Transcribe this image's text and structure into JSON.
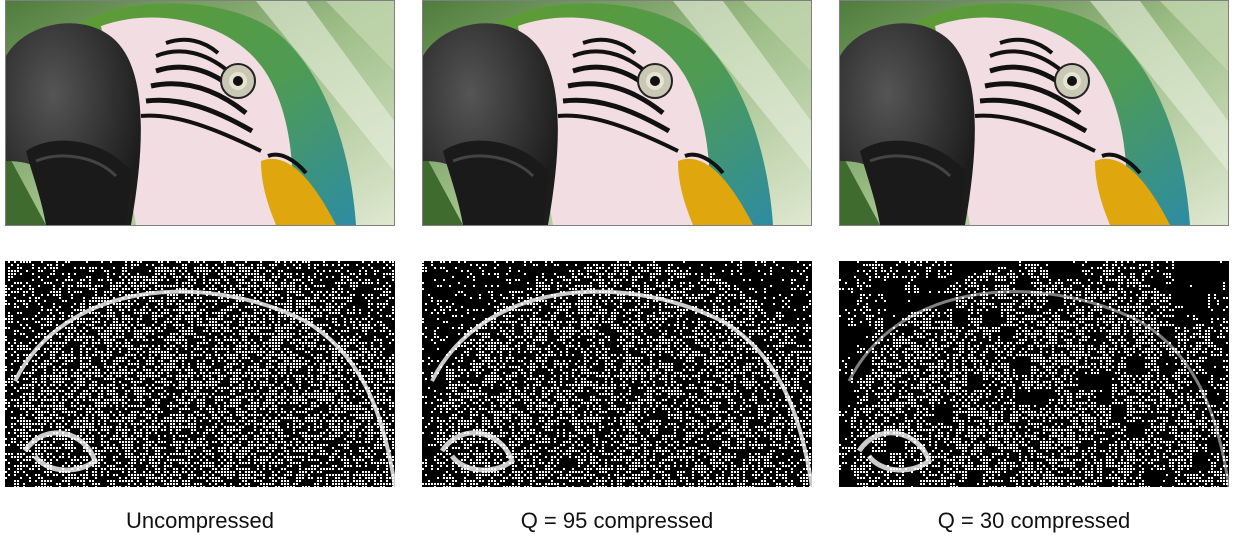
{
  "panels": [
    {
      "caption": "Uncompressed",
      "noise_level": "low",
      "blockiness": "none"
    },
    {
      "caption": "Q = 95 compressed",
      "noise_level": "low",
      "blockiness": "slight"
    },
    {
      "caption": "Q = 30 compressed",
      "noise_level": "high",
      "blockiness": "strong"
    }
  ],
  "colors": {
    "background_green": "#7fa66a",
    "parrot_green": "#5f9b2f",
    "parrot_teal": "#2d8ca3",
    "parrot_yellow": "#e0a60e",
    "beak_dark": "#2b2b2b",
    "face_pink": "#f1dde2",
    "stripe_black": "#111111"
  }
}
